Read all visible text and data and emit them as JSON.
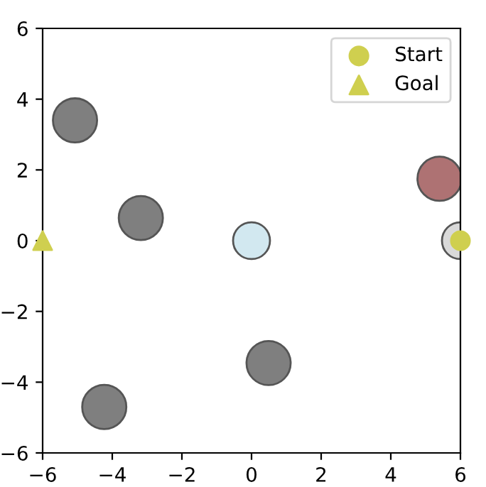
{
  "chart_data": {
    "type": "scatter",
    "series": [
      {
        "type": "bubble",
        "color": "#7f7f7f",
        "x": [
          -5.07,
          -3.18,
          0.49,
          -4.23
        ],
        "values": [
          3.4,
          0.64,
          -3.46,
          -4.7
        ],
        "sizes": [
          1,
          1,
          1,
          1
        ]
      },
      {
        "type": "bubble",
        "color": "#ae7273",
        "x": [
          5.4
        ],
        "values": [
          1.75
        ],
        "sizes": [
          1
        ]
      },
      {
        "type": "bubble",
        "color": "#d2e8f0",
        "x": [
          0.0
        ],
        "values": [
          0.0
        ],
        "sizes": [
          0.7
        ]
      },
      {
        "type": "bubble",
        "color": "#d9d9d9",
        "x": [
          6.0
        ],
        "values": [
          0.0
        ],
        "sizes": [
          0.7
        ]
      },
      {
        "name": "Start",
        "color": "#cfcf4f",
        "marker": "circle",
        "x": [
          6.0
        ],
        "values": [
          0.0
        ]
      },
      {
        "name": "Goal",
        "color": "#cfcf4f",
        "marker": "triangle",
        "x": [
          -6.0
        ],
        "values": [
          0.0
        ]
      }
    ],
    "xlim": [
      -6,
      6
    ],
    "ylim": [
      -6,
      6
    ],
    "xticks": [
      {
        "value": -6,
        "label": "−6"
      },
      {
        "value": -4,
        "label": "−4"
      },
      {
        "value": -2,
        "label": "−2"
      },
      0,
      2,
      4,
      6
    ],
    "yticks": [
      {
        "value": -6,
        "label": "−6"
      },
      {
        "value": -4,
        "label": "−4"
      },
      {
        "value": -2,
        "label": "−2"
      },
      0,
      2,
      4,
      6
    ],
    "legend": "top right"
  }
}
